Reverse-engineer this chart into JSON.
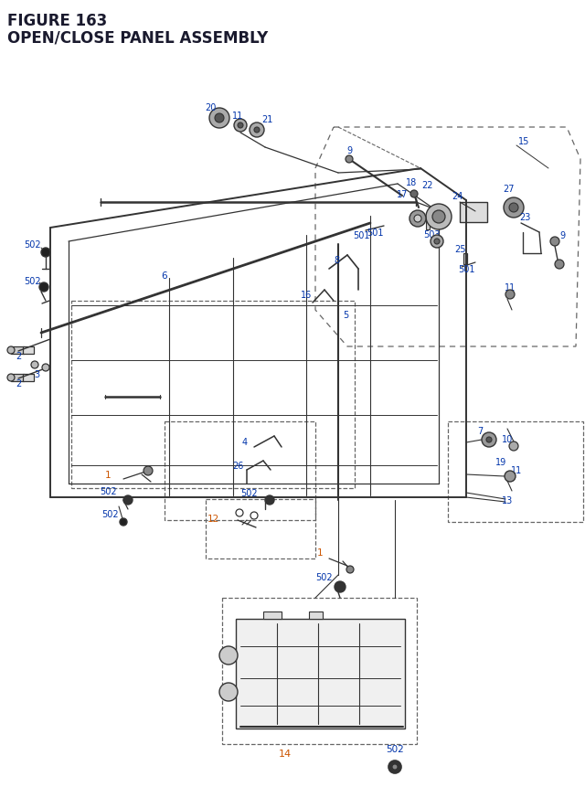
{
  "title_line1": "FIGURE 163",
  "title_line2": "OPEN/CLOSE PANEL ASSEMBLY",
  "title_color": "#1a1a2e",
  "title_fontsize": 12,
  "bg_color": "#ffffff",
  "label_color_black": "#222222",
  "label_color_blue": "#0033aa",
  "label_color_orange": "#cc5500",
  "dashed_box_color": "#666666",
  "line_color": "#2a2a2a",
  "part_color": "#333333"
}
